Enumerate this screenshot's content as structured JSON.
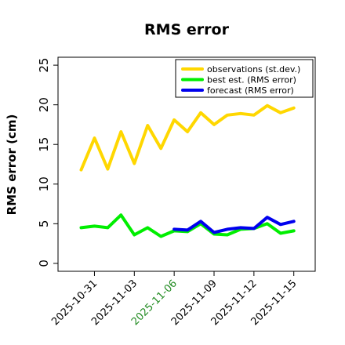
{
  "chart_data": {
    "type": "line",
    "title": "RMS error",
    "xlabel": "",
    "ylabel": "RMS error (cm)",
    "ylim": [
      -1,
      26
    ],
    "yticks": [
      0,
      5,
      10,
      15,
      20,
      25
    ],
    "grid": false,
    "legend_placement": "top-right",
    "x": [
      "2025-10-30",
      "2025-10-31",
      "2025-11-01",
      "2025-11-02",
      "2025-11-03",
      "2025-11-04",
      "2025-11-05",
      "2025-11-06",
      "2025-11-07",
      "2025-11-08",
      "2025-11-09",
      "2025-11-10",
      "2025-11-11",
      "2025-11-12",
      "2025-11-13",
      "2025-11-14",
      "2025-11-15"
    ],
    "xticks": [
      {
        "label": "2025-10-31",
        "color": "#000000"
      },
      {
        "label": "2025-11-03",
        "color": "#000000"
      },
      {
        "label": "2025-11-06",
        "color": "#228B22"
      },
      {
        "label": "2025-11-09",
        "color": "#000000"
      },
      {
        "label": "2025-11-12",
        "color": "#000000"
      },
      {
        "label": "2025-11-15",
        "color": "#000000"
      }
    ],
    "series": [
      {
        "name": "observations (st.dev.)",
        "color": "#FFD700",
        "x": [
          "2025-10-30",
          "2025-10-31",
          "2025-11-01",
          "2025-11-02",
          "2025-11-03",
          "2025-11-04",
          "2025-11-05",
          "2025-11-06",
          "2025-11-07",
          "2025-11-08",
          "2025-11-09",
          "2025-11-10",
          "2025-11-11",
          "2025-11-12",
          "2025-11-13",
          "2025-11-14",
          "2025-11-15"
        ],
        "values": [
          11.8,
          15.8,
          11.9,
          16.6,
          12.6,
          17.4,
          14.5,
          18.1,
          16.6,
          19.0,
          17.5,
          18.7,
          18.9,
          18.7,
          19.9,
          19.0,
          19.6
        ]
      },
      {
        "name": "best est. (RMS error)",
        "color": "#00EE00",
        "x": [
          "2025-10-30",
          "2025-10-31",
          "2025-11-01",
          "2025-11-02",
          "2025-11-03",
          "2025-11-04",
          "2025-11-05",
          "2025-11-06",
          "2025-11-07",
          "2025-11-08",
          "2025-11-09",
          "2025-11-10",
          "2025-11-11",
          "2025-11-12",
          "2025-11-13",
          "2025-11-14",
          "2025-11-15"
        ],
        "values": [
          4.5,
          4.7,
          4.5,
          6.1,
          3.6,
          4.5,
          3.4,
          4.1,
          4.0,
          5.0,
          3.7,
          3.6,
          4.3,
          4.4,
          5.0,
          3.8,
          4.1
        ]
      },
      {
        "name": "forecast (RMS error)",
        "color": "#0000EE",
        "x": [
          "2025-11-06",
          "2025-11-07",
          "2025-11-08",
          "2025-11-09",
          "2025-11-10",
          "2025-11-11",
          "2025-11-12",
          "2025-11-13",
          "2025-11-14",
          "2025-11-15"
        ],
        "values": [
          4.3,
          4.2,
          5.3,
          3.9,
          4.3,
          4.5,
          4.4,
          5.8,
          4.9,
          5.3
        ]
      }
    ]
  }
}
